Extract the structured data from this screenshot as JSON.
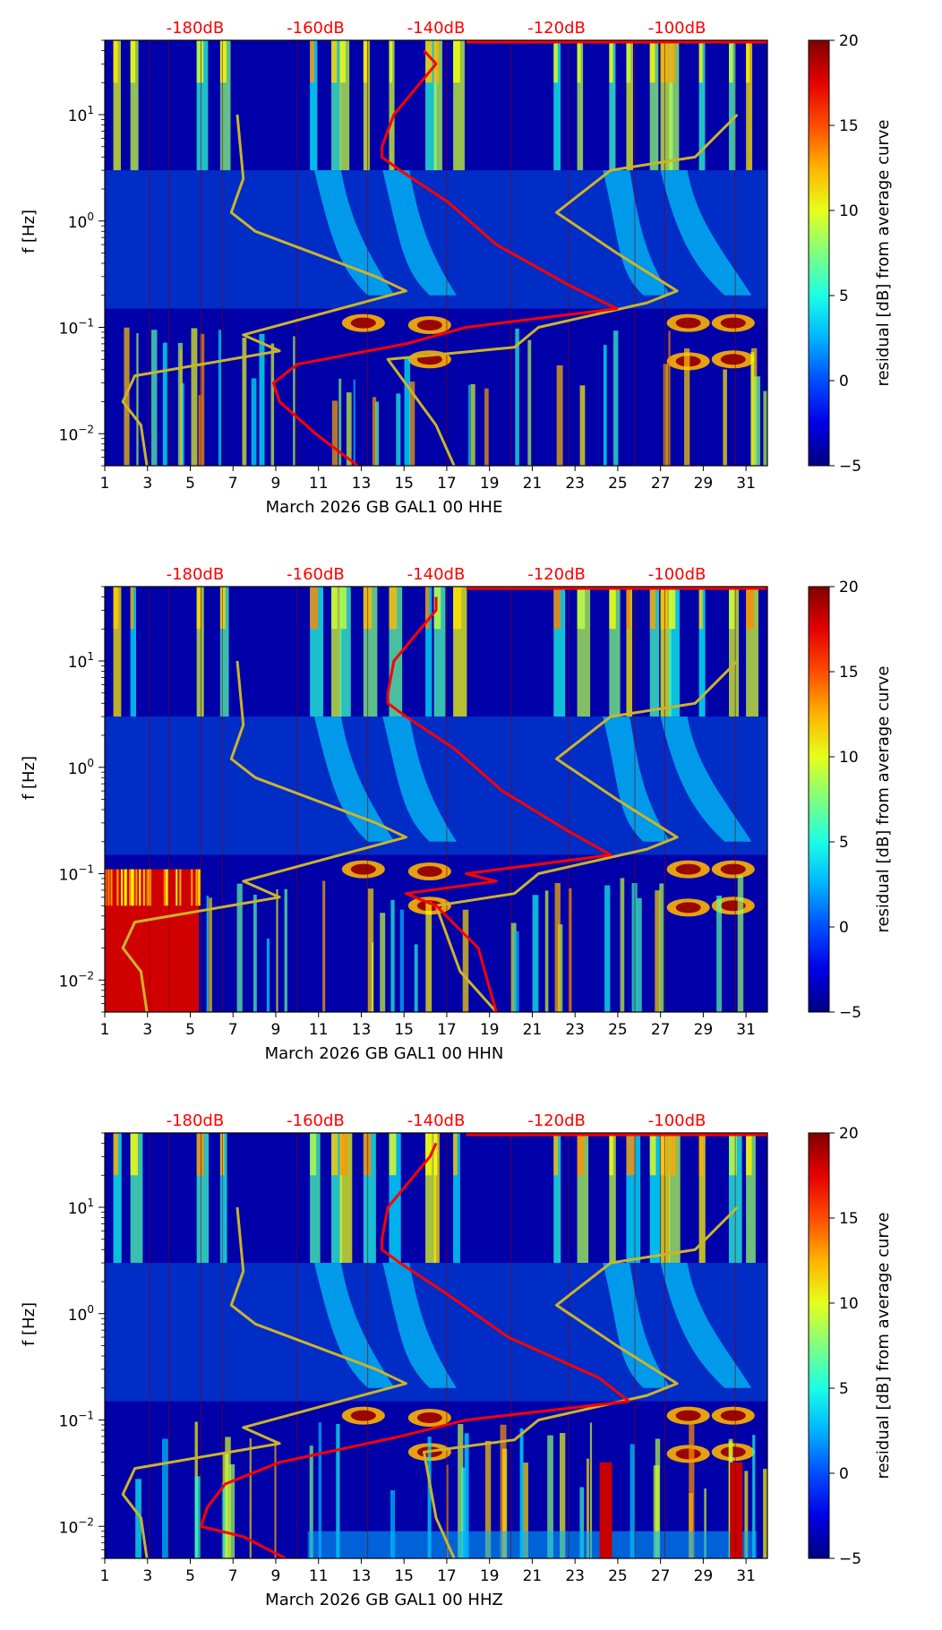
{
  "chart_data": [
    {
      "type": "heatmap",
      "panel_index": 0,
      "xlabel": "March 2026 GB GAL1 00 HHE",
      "ylabel": "f [Hz]",
      "colorbar_label": "residual [dB] from average curve",
      "colorbar_ticks": [
        "20",
        "15",
        "10",
        "5",
        "0",
        "−5"
      ],
      "colorbar_range": [
        -5,
        20
      ],
      "x_ticks": [
        "1",
        "3",
        "5",
        "7",
        "9",
        "11",
        "13",
        "15",
        "17",
        "19",
        "21",
        "23",
        "25",
        "27",
        "29",
        "31"
      ],
      "y_ticks": [
        {
          "base": "10",
          "exp": "1"
        },
        {
          "base": "10",
          "exp": "0"
        },
        {
          "base": "10",
          "exp": "−1"
        },
        {
          "base": "10",
          "exp": "−2"
        }
      ],
      "top_axis_labels": [
        "-180dB",
        "-160dB",
        "-140dB",
        "-120dB",
        "-100dB"
      ],
      "xlim": [
        1,
        32
      ],
      "ylim_hz": [
        0.005,
        50
      ],
      "yscale": "log",
      "colormap": "jet",
      "colors": {
        "power_curve": "#ff0000",
        "overlay_curve": "#cbb42a"
      },
      "red_curve_db_vs_hz": [
        [
          -142,
          40
        ],
        [
          -140,
          30
        ],
        [
          -147,
          10
        ],
        [
          -149,
          5
        ],
        [
          -149,
          4
        ],
        [
          -146,
          3
        ],
        [
          -138,
          1.5
        ],
        [
          -130,
          0.6
        ],
        [
          -118,
          0.25
        ],
        [
          -110,
          0.15
        ],
        [
          -135,
          0.1
        ],
        [
          -145,
          0.07
        ],
        [
          -163,
          0.045
        ],
        [
          -167,
          0.03
        ],
        [
          -166,
          0.02
        ],
        [
          -160,
          0.01
        ],
        [
          -153,
          0.005
        ]
      ],
      "yellow_curve_db_vs_hz": [
        [
          -173,
          10
        ],
        [
          -172,
          2.5
        ],
        [
          -174,
          1.2
        ],
        [
          -170,
          0.8
        ],
        [
          -150,
          0.3
        ],
        [
          -145,
          0.22
        ],
        [
          -172,
          0.085
        ],
        [
          -166,
          0.06
        ],
        [
          -190,
          0.035
        ],
        [
          -192,
          0.02
        ],
        [
          -189,
          0.012
        ],
        [
          -188,
          0.005
        ]
      ],
      "yellow_curve2_db_vs_hz": [
        [
          -90,
          10
        ],
        [
          -97,
          4
        ],
        [
          -111,
          3
        ],
        [
          -120,
          1.2
        ],
        [
          -110,
          0.5
        ],
        [
          -100,
          0.22
        ],
        [
          -105,
          0.17
        ],
        [
          -123,
          0.1
        ],
        [
          -127,
          0.065
        ],
        [
          -148,
          0.05
        ],
        [
          -140,
          0.012
        ],
        [
          -137,
          0.005
        ]
      ]
    },
    {
      "type": "heatmap",
      "panel_index": 1,
      "xlabel": "March 2026 GB GAL1 00 HHN",
      "ylabel": "f [Hz]",
      "colorbar_label": "residual [dB] from average curve",
      "colorbar_ticks": [
        "20",
        "15",
        "10",
        "5",
        "0",
        "−5"
      ],
      "colorbar_range": [
        -5,
        20
      ],
      "x_ticks": [
        "1",
        "3",
        "5",
        "7",
        "9",
        "11",
        "13",
        "15",
        "17",
        "19",
        "21",
        "23",
        "25",
        "27",
        "29",
        "31"
      ],
      "y_ticks": [
        {
          "base": "10",
          "exp": "1"
        },
        {
          "base": "10",
          "exp": "0"
        },
        {
          "base": "10",
          "exp": "−1"
        },
        {
          "base": "10",
          "exp": "−2"
        }
      ],
      "top_axis_labels": [
        "-180dB",
        "-160dB",
        "-140dB",
        "-120dB",
        "-100dB"
      ],
      "xlim": [
        1,
        32
      ],
      "ylim_hz": [
        0.005,
        50
      ],
      "yscale": "log",
      "colormap": "jet",
      "colors": {
        "power_curve": "#ff0000",
        "overlay_curve": "#cbb42a"
      },
      "red_curve_db_vs_hz": [
        [
          -140,
          40
        ],
        [
          -140,
          30
        ],
        [
          -147,
          10
        ],
        [
          -148,
          5
        ],
        [
          -148,
          4
        ],
        [
          -145,
          3
        ],
        [
          -137,
          1.5
        ],
        [
          -129,
          0.6
        ],
        [
          -118,
          0.25
        ],
        [
          -111,
          0.15
        ],
        [
          -135,
          0.1
        ],
        [
          -130,
          0.085
        ],
        [
          -145,
          0.065
        ],
        [
          -140,
          0.05
        ],
        [
          -133,
          0.02
        ],
        [
          -130,
          0.005
        ]
      ],
      "yellow_curve_db_vs_hz": [
        [
          -173,
          10
        ],
        [
          -172,
          2.5
        ],
        [
          -174,
          1.2
        ],
        [
          -170,
          0.8
        ],
        [
          -150,
          0.3
        ],
        [
          -145,
          0.22
        ],
        [
          -172,
          0.085
        ],
        [
          -166,
          0.06
        ],
        [
          -190,
          0.035
        ],
        [
          -192,
          0.02
        ],
        [
          -189,
          0.012
        ],
        [
          -188,
          0.005
        ]
      ],
      "yellow_curve2_db_vs_hz": [
        [
          -90,
          10
        ],
        [
          -97,
          4
        ],
        [
          -111,
          3
        ],
        [
          -120,
          1.2
        ],
        [
          -110,
          0.5
        ],
        [
          -100,
          0.22
        ],
        [
          -105,
          0.17
        ],
        [
          -123,
          0.1
        ],
        [
          -127,
          0.065
        ],
        [
          -140,
          0.05
        ],
        [
          -136,
          0.012
        ],
        [
          -130,
          0.005
        ]
      ]
    },
    {
      "type": "heatmap",
      "panel_index": 2,
      "xlabel": "March 2026 GB GAL1 00 HHZ",
      "ylabel": "f [Hz]",
      "colorbar_label": "residual [dB] from average curve",
      "colorbar_ticks": [
        "20",
        "15",
        "10",
        "5",
        "0",
        "−5"
      ],
      "colorbar_range": [
        -5,
        20
      ],
      "x_ticks": [
        "1",
        "3",
        "5",
        "7",
        "9",
        "11",
        "13",
        "15",
        "17",
        "19",
        "21",
        "23",
        "25",
        "27",
        "29",
        "31"
      ],
      "y_ticks": [
        {
          "base": "10",
          "exp": "1"
        },
        {
          "base": "10",
          "exp": "0"
        },
        {
          "base": "10",
          "exp": "−1"
        },
        {
          "base": "10",
          "exp": "−2"
        }
      ],
      "top_axis_labels": [
        "-180dB",
        "-160dB",
        "-140dB",
        "-120dB",
        "-100dB"
      ],
      "xlim": [
        1,
        32
      ],
      "ylim_hz": [
        0.005,
        50
      ],
      "yscale": "log",
      "colormap": "jet",
      "colors": {
        "power_curve": "#ff0000",
        "overlay_curve": "#cbb42a"
      },
      "red_curve_db_vs_hz": [
        [
          -140,
          40
        ],
        [
          -141,
          30
        ],
        [
          -148,
          10
        ],
        [
          -149,
          5
        ],
        [
          -149,
          4
        ],
        [
          -146,
          3
        ],
        [
          -138,
          1.5
        ],
        [
          -128,
          0.6
        ],
        [
          -113,
          0.25
        ],
        [
          -108,
          0.15
        ],
        [
          -135,
          0.1
        ],
        [
          -146,
          0.07
        ],
        [
          -166,
          0.04
        ],
        [
          -175,
          0.025
        ],
        [
          -178,
          0.015
        ],
        [
          -179,
          0.01
        ],
        [
          -172,
          0.008
        ],
        [
          -165,
          0.005
        ]
      ],
      "yellow_curve_db_vs_hz": [
        [
          -173,
          10
        ],
        [
          -172,
          2.5
        ],
        [
          -174,
          1.2
        ],
        [
          -170,
          0.8
        ],
        [
          -150,
          0.3
        ],
        [
          -145,
          0.22
        ],
        [
          -172,
          0.085
        ],
        [
          -166,
          0.06
        ],
        [
          -190,
          0.035
        ],
        [
          -192,
          0.02
        ],
        [
          -189,
          0.012
        ],
        [
          -188,
          0.005
        ]
      ],
      "yellow_curve2_db_vs_hz": [
        [
          -90,
          10
        ],
        [
          -97,
          4
        ],
        [
          -111,
          3
        ],
        [
          -120,
          1.2
        ],
        [
          -110,
          0.5
        ],
        [
          -100,
          0.22
        ],
        [
          -105,
          0.17
        ],
        [
          -123,
          0.1
        ],
        [
          -127,
          0.065
        ],
        [
          -142,
          0.05
        ],
        [
          -140,
          0.012
        ],
        [
          -137,
          0.005
        ]
      ]
    }
  ]
}
